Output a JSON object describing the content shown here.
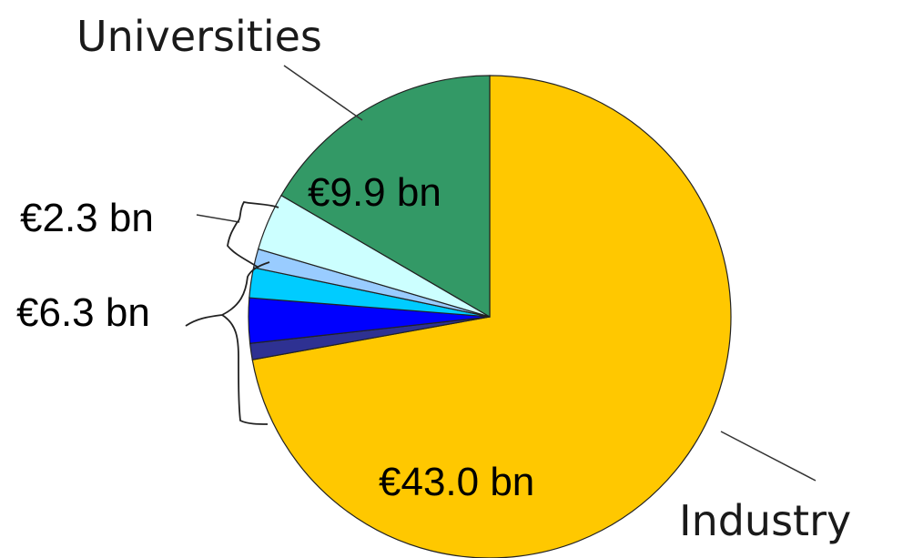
{
  "chart_data": {
    "type": "pie",
    "slices": [
      {
        "label": "Industry",
        "value": 43.0,
        "display": "€43.0 bn",
        "color": "#ffc800"
      },
      {
        "label": "",
        "value": 0.65,
        "display": "",
        "color": "#2e3192"
      },
      {
        "label": "",
        "value": 1.8,
        "display": "",
        "color": "#0000ff"
      },
      {
        "label": "",
        "value": 1.2,
        "display": "",
        "color": "#00ccff"
      },
      {
        "label": "",
        "value": 0.75,
        "display": "",
        "color": "#99ccff"
      },
      {
        "label": "",
        "value": 2.3,
        "display": "",
        "color": "#ccffff"
      },
      {
        "label": "Universities",
        "value": 9.9,
        "display": "€9.9 bn",
        "color": "#339966"
      }
    ],
    "group_labels": {
      "group_2_3": "€2.3 bn",
      "group_6_3": "€6.3 bn"
    },
    "legend": "none"
  }
}
